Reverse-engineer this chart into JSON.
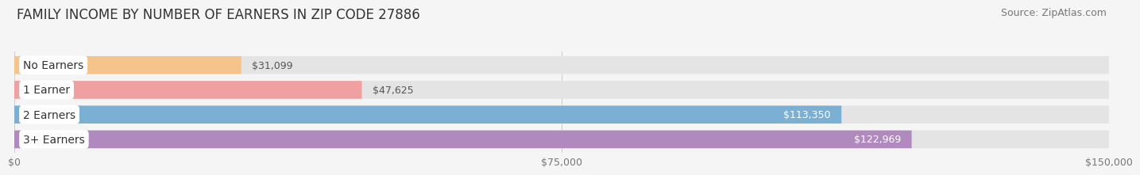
{
  "title": "FAMILY INCOME BY NUMBER OF EARNERS IN ZIP CODE 27886",
  "source": "Source: ZipAtlas.com",
  "categories": [
    "No Earners",
    "1 Earner",
    "2 Earners",
    "3+ Earners"
  ],
  "values": [
    31099,
    47625,
    113350,
    122969
  ],
  "bar_colors": [
    "#f5c48a",
    "#f0a0a0",
    "#7bafd4",
    "#b08abf"
  ],
  "label_colors": [
    "#555555",
    "#555555",
    "#ffffff",
    "#ffffff"
  ],
  "value_labels": [
    "$31,099",
    "$47,625",
    "$113,350",
    "$122,969"
  ],
  "xlim": [
    0,
    150000
  ],
  "xticks": [
    0,
    75000,
    150000
  ],
  "xticklabels": [
    "$0",
    "$75,000",
    "$150,000"
  ],
  "background_color": "#f5f5f5",
  "bar_bg_color": "#e4e4e4",
  "title_fontsize": 12,
  "source_fontsize": 9,
  "label_fontsize": 10,
  "value_fontsize": 9
}
